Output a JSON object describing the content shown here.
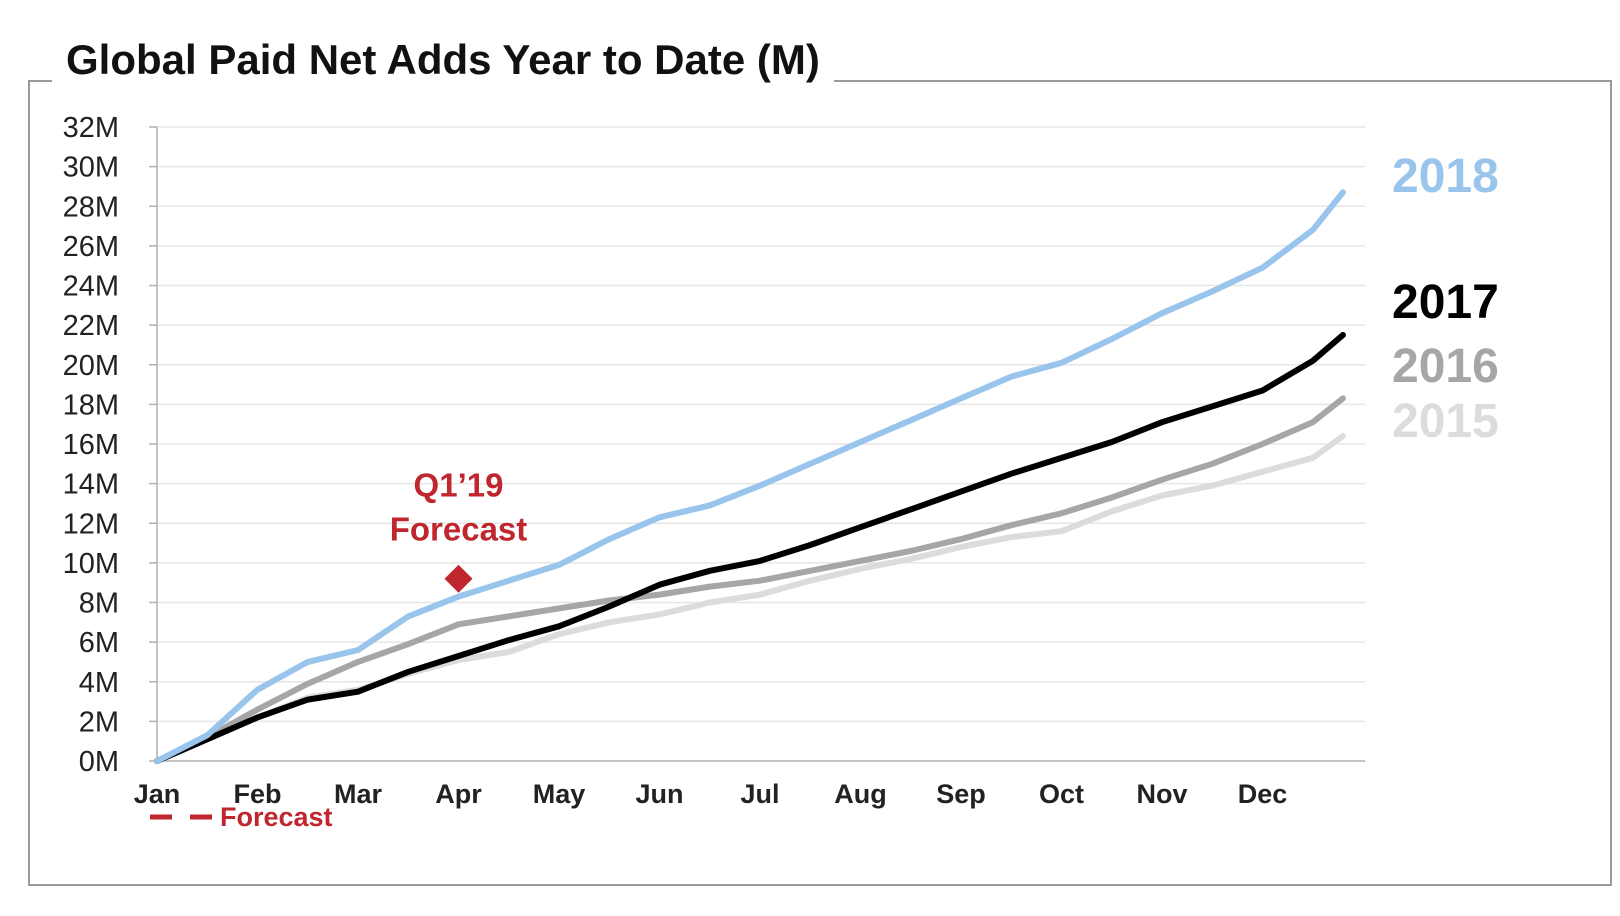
{
  "chart_data": {
    "type": "line",
    "title": "Global Paid Net Adds Year to Date (M)",
    "xlabel": "",
    "ylabel": "",
    "ylim": [
      0,
      32
    ],
    "y_ticks": [
      "0M",
      "2M",
      "4M",
      "6M",
      "8M",
      "10M",
      "12M",
      "14M",
      "16M",
      "18M",
      "20M",
      "22M",
      "24M",
      "26M",
      "28M",
      "30M",
      "32M"
    ],
    "categories": [
      "Jan",
      "Feb",
      "Mar",
      "Apr",
      "May",
      "Jun",
      "Jul",
      "Aug",
      "Sep",
      "Oct",
      "Nov",
      "Dec"
    ],
    "grid": true,
    "legend_position": "bottom-left",
    "series": [
      {
        "name": "2015",
        "color": "#dcdcdc",
        "points": [
          [
            0,
            0
          ],
          [
            0.5,
            1.1
          ],
          [
            1,
            2.2
          ],
          [
            1.5,
            3.2
          ],
          [
            2,
            3.6
          ],
          [
            2.5,
            4.4
          ],
          [
            3,
            5.1
          ],
          [
            3.5,
            5.5
          ],
          [
            4,
            6.4
          ],
          [
            4.5,
            7.0
          ],
          [
            5,
            7.4
          ],
          [
            5.5,
            8.0
          ],
          [
            6,
            8.4
          ],
          [
            6.5,
            9.1
          ],
          [
            7,
            9.7
          ],
          [
            7.5,
            10.2
          ],
          [
            8,
            10.8
          ],
          [
            8.5,
            11.3
          ],
          [
            9,
            11.6
          ],
          [
            9.5,
            12.6
          ],
          [
            10,
            13.4
          ],
          [
            10.5,
            13.9
          ],
          [
            11,
            14.6
          ],
          [
            11.5,
            15.3
          ],
          [
            11.8,
            16.4
          ]
        ]
      },
      {
        "name": "2016",
        "color": "#a6a6a6",
        "points": [
          [
            0,
            0
          ],
          [
            0.5,
            1.2
          ],
          [
            1,
            2.6
          ],
          [
            1.5,
            3.9
          ],
          [
            2,
            5.0
          ],
          [
            2.5,
            5.9
          ],
          [
            3,
            6.9
          ],
          [
            3.5,
            7.3
          ],
          [
            4,
            7.7
          ],
          [
            4.5,
            8.1
          ],
          [
            5,
            8.4
          ],
          [
            5.5,
            8.8
          ],
          [
            6,
            9.1
          ],
          [
            6.5,
            9.6
          ],
          [
            7,
            10.1
          ],
          [
            7.5,
            10.6
          ],
          [
            8,
            11.2
          ],
          [
            8.5,
            11.9
          ],
          [
            9,
            12.5
          ],
          [
            9.5,
            13.3
          ],
          [
            10,
            14.2
          ],
          [
            10.5,
            15.0
          ],
          [
            11,
            16.0
          ],
          [
            11.5,
            17.1
          ],
          [
            11.8,
            18.3
          ]
        ]
      },
      {
        "name": "2017",
        "color": "#000000",
        "points": [
          [
            0,
            0
          ],
          [
            0.5,
            1.1
          ],
          [
            1,
            2.2
          ],
          [
            1.5,
            3.1
          ],
          [
            2,
            3.5
          ],
          [
            2.5,
            4.5
          ],
          [
            3,
            5.3
          ],
          [
            3.5,
            6.1
          ],
          [
            4,
            6.8
          ],
          [
            4.5,
            7.8
          ],
          [
            5,
            8.9
          ],
          [
            5.5,
            9.6
          ],
          [
            6,
            10.1
          ],
          [
            6.5,
            10.9
          ],
          [
            7,
            11.8
          ],
          [
            7.5,
            12.7
          ],
          [
            8,
            13.6
          ],
          [
            8.5,
            14.5
          ],
          [
            9,
            15.3
          ],
          [
            9.5,
            16.1
          ],
          [
            10,
            17.1
          ],
          [
            10.5,
            17.9
          ],
          [
            11,
            18.7
          ],
          [
            11.5,
            20.2
          ],
          [
            11.8,
            21.5
          ]
        ]
      },
      {
        "name": "2018",
        "color": "#99c4ec",
        "points": [
          [
            0,
            0
          ],
          [
            0.5,
            1.3
          ],
          [
            1,
            3.6
          ],
          [
            1.5,
            5.0
          ],
          [
            2,
            5.6
          ],
          [
            2.5,
            7.3
          ],
          [
            3,
            8.3
          ],
          [
            3.5,
            9.1
          ],
          [
            4,
            9.9
          ],
          [
            4.5,
            11.2
          ],
          [
            5,
            12.3
          ],
          [
            5.5,
            12.9
          ],
          [
            6,
            13.9
          ],
          [
            6.5,
            15.0
          ],
          [
            7,
            16.1
          ],
          [
            7.5,
            17.2
          ],
          [
            8,
            18.3
          ],
          [
            8.5,
            19.4
          ],
          [
            9,
            20.1
          ],
          [
            9.5,
            21.3
          ],
          [
            10,
            22.6
          ],
          [
            10.5,
            23.7
          ],
          [
            11,
            24.9
          ],
          [
            11.5,
            26.8
          ],
          [
            11.8,
            28.7
          ]
        ]
      }
    ],
    "annotations": [
      {
        "text_line1": "Q1’19",
        "text_line2": "Forecast",
        "marker": "diamond",
        "x": 3.0,
        "y": 9.2,
        "color": "#c0262d"
      }
    ],
    "legend": {
      "text": "Forecast",
      "style": "dashed",
      "color": "#c0262d"
    }
  }
}
